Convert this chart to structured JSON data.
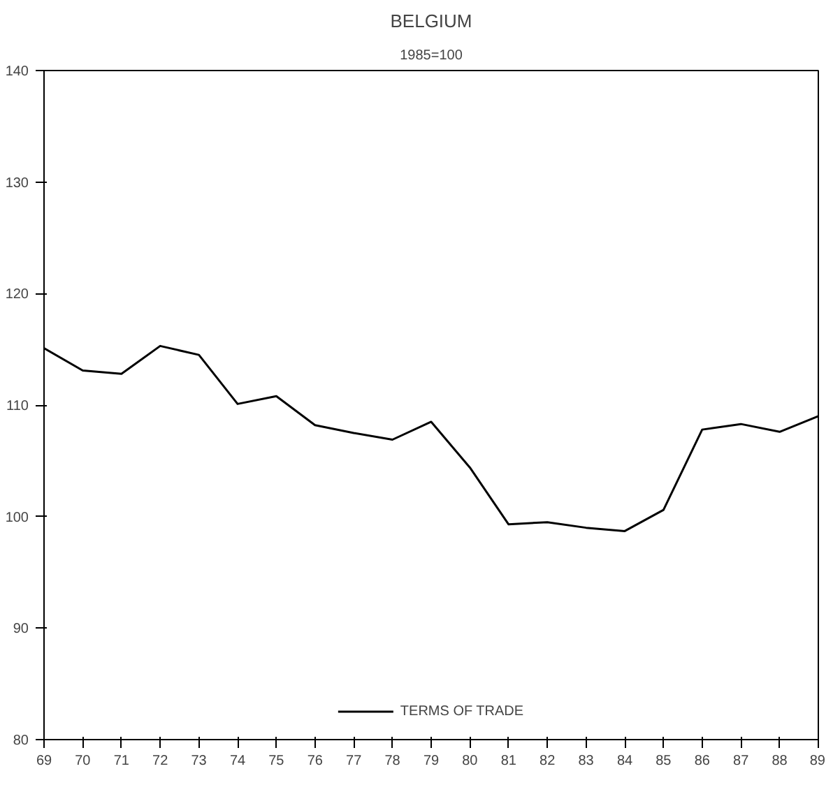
{
  "chart_data": {
    "type": "line",
    "title": "BELGIUM",
    "subtitle": "1985=100",
    "x": [
      69,
      70,
      71,
      72,
      73,
      74,
      75,
      76,
      77,
      78,
      79,
      80,
      81,
      82,
      83,
      84,
      85,
      86,
      87,
      88,
      89
    ],
    "series": [
      {
        "name": "TERMS OF TRADE",
        "color": "#000000",
        "values": [
          115.1,
          113.1,
          112.8,
          115.3,
          114.5,
          110.1,
          110.8,
          108.2,
          107.5,
          106.9,
          108.5,
          104.4,
          99.3,
          99.5,
          99.0,
          98.7,
          100.6,
          107.8,
          108.3,
          107.6,
          109.0
        ]
      }
    ],
    "xlim": [
      69,
      89
    ],
    "xticks": [
      69,
      70,
      71,
      72,
      73,
      74,
      75,
      76,
      77,
      78,
      79,
      80,
      81,
      82,
      83,
      84,
      85,
      86,
      87,
      88,
      89
    ],
    "ylim": [
      80,
      140
    ],
    "yticks": [
      80,
      90,
      100,
      110,
      120,
      130,
      140
    ],
    "grid": false,
    "legend": "bottom",
    "marker": "none",
    "line_style": "solid"
  }
}
